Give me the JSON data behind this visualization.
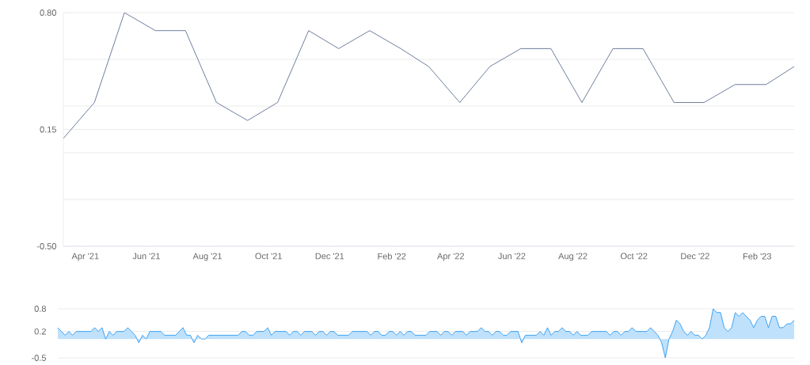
{
  "chart_data": [
    {
      "type": "line",
      "x": [
        "2021-03-10",
        "2021-04-10",
        "2021-05-10",
        "2021-06-10",
        "2021-07-10",
        "2021-08-10",
        "2021-09-10",
        "2021-10-10",
        "2021-11-10",
        "2021-12-10",
        "2022-01-10",
        "2022-02-10",
        "2022-03-10",
        "2022-04-10",
        "2022-05-10",
        "2022-06-10",
        "2022-07-10",
        "2022-08-10",
        "2022-09-10",
        "2022-10-10",
        "2022-11-10",
        "2022-12-10",
        "2023-01-10",
        "2023-02-10",
        "2023-03-10"
      ],
      "values": [
        0.1,
        0.3,
        0.8,
        0.7,
        0.7,
        0.3,
        0.2,
        0.3,
        0.7,
        0.6,
        0.7,
        0.6,
        0.5,
        0.3,
        0.5,
        0.6,
        0.6,
        0.3,
        0.6,
        0.6,
        0.3,
        0.3,
        0.4,
        0.4,
        0.5
      ],
      "color": "#5f7192",
      "xlim": [
        "2021-03-10",
        "2023-03-10"
      ],
      "xticks": [
        {
          "value": "2021-04-01",
          "label": "Apr '21"
        },
        {
          "value": "2021-06-01",
          "label": "Jun '21"
        },
        {
          "value": "2021-08-01",
          "label": "Aug '21"
        },
        {
          "value": "2021-10-01",
          "label": "Oct '21"
        },
        {
          "value": "2021-12-01",
          "label": "Dec '21"
        },
        {
          "value": "2022-02-01",
          "label": "Feb '22"
        },
        {
          "value": "2022-04-01",
          "label": "Apr '22"
        },
        {
          "value": "2022-06-01",
          "label": "Jun '22"
        },
        {
          "value": "2022-08-01",
          "label": "Aug '22"
        },
        {
          "value": "2022-10-01",
          "label": "Oct '22"
        },
        {
          "value": "2022-12-01",
          "label": "Dec '22"
        },
        {
          "value": "2023-02-01",
          "label": "Feb '23"
        }
      ],
      "ylim": [
        -0.5,
        0.8
      ],
      "yticks": [
        {
          "value": -0.5,
          "label": "-0.50"
        },
        {
          "value": -0.24,
          "label": null
        },
        {
          "value": 0.02,
          "label": null
        },
        {
          "value": 0.15,
          "label": "0.15"
        },
        {
          "value": 0.28,
          "label": null
        },
        {
          "value": 0.54,
          "label": null
        },
        {
          "value": 0.8,
          "label": "0.80"
        }
      ],
      "grid": "y"
    },
    {
      "type": "area",
      "categories": [
        null,
        null,
        null,
        null,
        null,
        null,
        null,
        null,
        null,
        null,
        null,
        null,
        null,
        null,
        null,
        null,
        null,
        null,
        null,
        null,
        null,
        null,
        null,
        null,
        null,
        null,
        null,
        null,
        null,
        null,
        null,
        null,
        null,
        null,
        null,
        null,
        null,
        null,
        null,
        null,
        null,
        null,
        null,
        null,
        null,
        null,
        null,
        null,
        null,
        null,
        null,
        null,
        null,
        null,
        null,
        null,
        null,
        null,
        null,
        null,
        null,
        null,
        null,
        null,
        null,
        null,
        null,
        null,
        null,
        null,
        null,
        null,
        null,
        null,
        null,
        null,
        null,
        null,
        null,
        null,
        null,
        null,
        null,
        null,
        null,
        null,
        null,
        null,
        null,
        null,
        null,
        null,
        null,
        null,
        null,
        null,
        null,
        null,
        null,
        null,
        null,
        null,
        null,
        null,
        null,
        null,
        null,
        null,
        null,
        null,
        null,
        null,
        null,
        null,
        null,
        null,
        null,
        null,
        null,
        null,
        null,
        null,
        null,
        null,
        null,
        null,
        null,
        null,
        null,
        null,
        null,
        null,
        null,
        null,
        null,
        null,
        null,
        null,
        null,
        null,
        null,
        null,
        null,
        null,
        null,
        null,
        null,
        null,
        null,
        null,
        null,
        null,
        null,
        null,
        null,
        null,
        null,
        null,
        null,
        null,
        null,
        null,
        null,
        null,
        null,
        null,
        null,
        null,
        null,
        null,
        null,
        null,
        null,
        null,
        null,
        null,
        null,
        null,
        null,
        null,
        null,
        null,
        null,
        null,
        null,
        null,
        null,
        null,
        null,
        null,
        null,
        null,
        null,
        null,
        null,
        null,
        null,
        null,
        null,
        null,
        null
      ],
      "values": [
        0.3,
        0.2,
        0.1,
        0.2,
        0.1,
        0.2,
        0.2,
        0.2,
        0.2,
        0.2,
        0.3,
        0.2,
        0.3,
        0.0,
        0.2,
        0.1,
        0.2,
        0.2,
        0.2,
        0.3,
        0.2,
        0.1,
        -0.1,
        0.1,
        0.0,
        0.2,
        0.2,
        0.2,
        0.2,
        0.1,
        0.1,
        0.1,
        0.1,
        0.2,
        0.3,
        0.1,
        0.1,
        -0.1,
        0.1,
        0.0,
        0.0,
        0.1,
        0.1,
        0.1,
        0.1,
        0.1,
        0.1,
        0.1,
        0.1,
        0.1,
        0.2,
        0.2,
        0.1,
        0.1,
        0.2,
        0.2,
        0.2,
        0.3,
        0.1,
        0.2,
        0.2,
        0.2,
        0.2,
        0.1,
        0.2,
        0.2,
        0.1,
        0.2,
        0.2,
        0.2,
        0.1,
        0.2,
        0.2,
        0.1,
        0.2,
        0.2,
        0.1,
        0.1,
        0.1,
        0.1,
        0.2,
        0.2,
        0.2,
        0.2,
        0.2,
        0.1,
        0.2,
        0.2,
        0.1,
        0.1,
        0.2,
        0.2,
        0.1,
        0.2,
        0.1,
        0.2,
        0.2,
        0.1,
        0.1,
        0.1,
        0.1,
        0.2,
        0.2,
        0.2,
        0.1,
        0.2,
        0.2,
        0.1,
        0.2,
        0.2,
        0.2,
        0.1,
        0.2,
        0.2,
        0.2,
        0.3,
        0.2,
        0.2,
        0.1,
        0.2,
        0.2,
        0.1,
        0.1,
        0.2,
        0.2,
        0.2,
        -0.1,
        0.1,
        0.1,
        0.1,
        0.1,
        0.2,
        0.1,
        0.3,
        0.1,
        0.2,
        0.2,
        0.3,
        0.2,
        0.2,
        0.1,
        0.2,
        0.1,
        0.1,
        0.1,
        0.2,
        0.2,
        0.2,
        0.2,
        0.2,
        0.1,
        0.2,
        0.2,
        0.1,
        0.2,
        0.2,
        0.3,
        0.2,
        0.2,
        0.2,
        0.2,
        0.3,
        0.2,
        0.1,
        -0.1,
        -0.5,
        0.0,
        0.2,
        0.5,
        0.4,
        0.2,
        0.1,
        0.2,
        0.1,
        0.1,
        0.0,
        0.1,
        0.3,
        0.8,
        0.7,
        0.7,
        0.3,
        0.2,
        0.3,
        0.7,
        0.6,
        0.7,
        0.6,
        0.5,
        0.3,
        0.5,
        0.6,
        0.6,
        0.3,
        0.6,
        0.6,
        0.3,
        0.3,
        0.4,
        0.4,
        0.5
      ],
      "color": "#2b9af3",
      "ylim": [
        -0.5,
        0.8
      ],
      "yticks": [
        -0.5,
        0.2,
        0.8
      ],
      "grid": "y",
      "tick_labels": "y"
    }
  ]
}
